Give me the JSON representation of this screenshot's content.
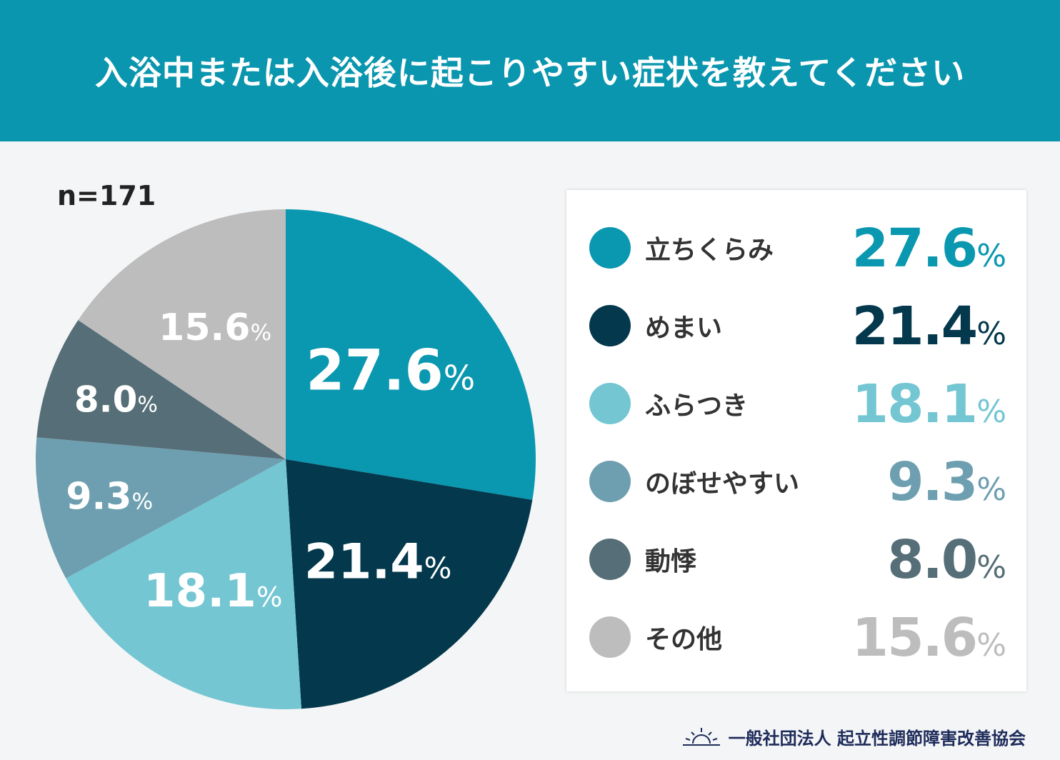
{
  "header": {
    "title": "入浴中または入浴後に起こりやすい症状を教えてください"
  },
  "sample": "n=171",
  "footer": {
    "org": "一般社団法人 起立性調節障害改善協会",
    "logo_icon": "sunrise-icon"
  },
  "chart_data": {
    "type": "pie",
    "title": "入浴中または入浴後に起こりやすい症状を教えてください",
    "start": "top",
    "direction": "clockwise",
    "unit": "%",
    "slices": [
      {
        "label": "立ちくらみ",
        "value": 27.6,
        "display": "27.6",
        "color": "#0a97b0"
      },
      {
        "label": "めまい",
        "value": 21.4,
        "display": "21.4",
        "color": "#04384d"
      },
      {
        "label": "ふらつき",
        "value": 18.1,
        "display": "18.1",
        "color": "#74c6d3"
      },
      {
        "label": "のぼせやすい",
        "value": 9.3,
        "display": "9.3",
        "color": "#6e9fb0"
      },
      {
        "label": "動悸",
        "value": 8.0,
        "display": "8.0",
        "color": "#566e77"
      },
      {
        "label": "その他",
        "value": 15.6,
        "display": "15.6",
        "color": "#bdbdbd"
      }
    ]
  }
}
